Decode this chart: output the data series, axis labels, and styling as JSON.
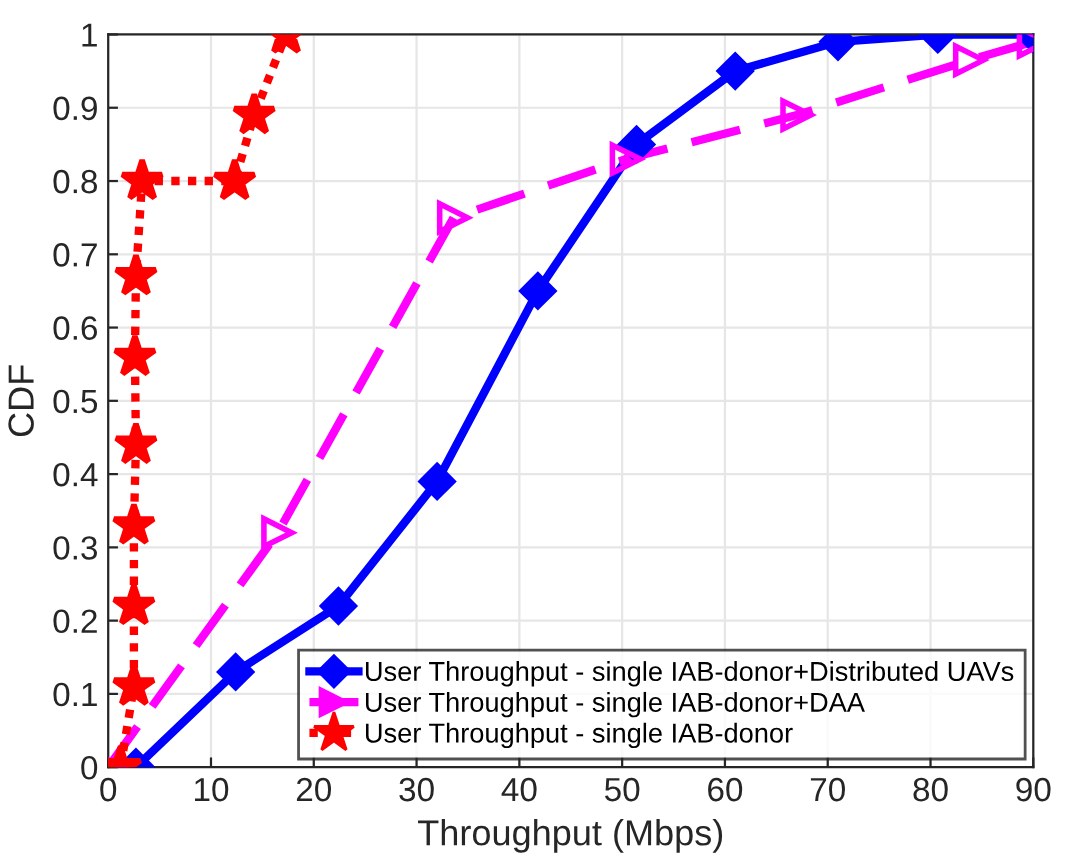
{
  "chart_data": {
    "type": "line",
    "xlabel": "Throughput (Mbps)",
    "ylabel": "CDF",
    "xlim": [
      0,
      90
    ],
    "ylim": [
      0,
      1
    ],
    "xticks": [
      0,
      10,
      20,
      30,
      40,
      50,
      60,
      70,
      80,
      90
    ],
    "yticks": [
      0,
      0.1,
      0.2,
      0.3,
      0.4,
      0.5,
      0.6,
      0.7,
      0.8,
      0.9,
      1
    ],
    "grid": true,
    "legend": "bottom right",
    "series": [
      {
        "name": "User Throughput - single IAB-donor+Distributed UAVs",
        "color": "#0000ff",
        "marker": "diamond",
        "line_style": "solid",
        "x": [
          2.7,
          12.4,
          22.4,
          32,
          41.8,
          51.4,
          61,
          71,
          80.7,
          90
        ],
        "values": [
          0,
          0.13,
          0.22,
          0.39,
          0.65,
          0.85,
          0.95,
          0.99,
          1,
          1
        ]
      },
      {
        "name": "User Throughput - single IAB-donor+DAA",
        "color": "#ff00ff",
        "marker": "triangle",
        "line_style": "dashed",
        "x": [
          0,
          16.5,
          33.6,
          50.4,
          67,
          83.8,
          90
        ],
        "values": [
          0,
          0.32,
          0.75,
          0.83,
          0.89,
          0.965,
          0.99
        ]
      },
      {
        "name": "User Throughput - single IAB-donor",
        "color": "#ff0000",
        "marker": "star",
        "line_style": "dotted",
        "x": [
          1.2,
          2.5,
          2.5,
          2.5,
          2.7,
          2.6,
          2.7,
          3.3,
          12.3,
          14.2,
          17.3
        ],
        "values": [
          0,
          0.11,
          0.22,
          0.33,
          0.44,
          0.56,
          0.67,
          0.8,
          0.8,
          0.89,
          1
        ]
      }
    ]
  }
}
